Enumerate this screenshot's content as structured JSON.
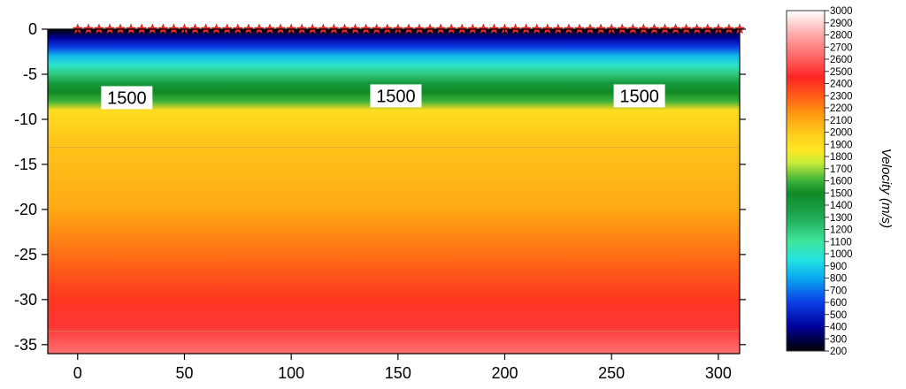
{
  "chart_data": {
    "type": "heatmap",
    "title": "",
    "xlabel": "",
    "ylabel": "",
    "xlim": [
      -14,
      310
    ],
    "ylim": [
      -36,
      0
    ],
    "xticks": [
      0,
      50,
      100,
      150,
      200,
      250,
      300
    ],
    "yticks": [
      0,
      -5,
      -10,
      -15,
      -20,
      -25,
      -30,
      -35
    ],
    "grid": false,
    "model_extent": {
      "x": [
        -14,
        310
      ],
      "depth": [
        0,
        -36
      ]
    },
    "velocity_profile": [
      {
        "depth": 0,
        "velocity": 200
      },
      {
        "depth": -1,
        "velocity": 400
      },
      {
        "depth": -2,
        "velocity": 600
      },
      {
        "depth": -3,
        "velocity": 850
      },
      {
        "depth": -4,
        "velocity": 1000
      },
      {
        "depth": -5,
        "velocity": 1200
      },
      {
        "depth": -6,
        "velocity": 1400
      },
      {
        "depth": -7,
        "velocity": 1500
      },
      {
        "depth": -8,
        "velocity": 1600
      },
      {
        "depth": -9,
        "velocity": 1900
      },
      {
        "depth": -12,
        "velocity": 2000
      },
      {
        "depth": -20,
        "velocity": 2100
      },
      {
        "depth": -25,
        "velocity": 2250
      },
      {
        "depth": -30,
        "velocity": 2400
      },
      {
        "depth": -33,
        "velocity": 2500
      },
      {
        "depth": -36,
        "velocity": 2650
      }
    ],
    "contours": [
      {
        "depth": -13.1
      },
      {
        "depth": -33.5
      }
    ],
    "contour_labels": [
      {
        "text": "1500",
        "x": 11,
        "depth": -7.6
      },
      {
        "text": "1500",
        "x": 137,
        "depth": -7.4
      },
      {
        "text": "1500",
        "x": 251,
        "depth": -7.4
      }
    ],
    "receivers": {
      "x_start": 0,
      "x_end": 310,
      "spacing": 5,
      "depth": 0,
      "color": "#ee2a2a"
    },
    "colorbar": {
      "label": "Velocity (m/s)",
      "min": 200,
      "max": 3000,
      "ticks": [
        200,
        300,
        400,
        500,
        600,
        700,
        800,
        900,
        1000,
        1100,
        1200,
        1300,
        1400,
        1500,
        1600,
        1700,
        1800,
        1900,
        2000,
        2100,
        2200,
        2300,
        2400,
        2500,
        2600,
        2700,
        2800,
        2900,
        3000
      ],
      "stops": [
        {
          "v": 200,
          "color": "#000000"
        },
        {
          "v": 400,
          "color": "#00009a"
        },
        {
          "v": 600,
          "color": "#0a3ee6"
        },
        {
          "v": 800,
          "color": "#0aa8f0"
        },
        {
          "v": 950,
          "color": "#22e4e0"
        },
        {
          "v": 1100,
          "color": "#3fe59c"
        },
        {
          "v": 1300,
          "color": "#1faa55"
        },
        {
          "v": 1500,
          "color": "#0f8a26"
        },
        {
          "v": 1600,
          "color": "#3cb23a"
        },
        {
          "v": 1750,
          "color": "#c8ec3a"
        },
        {
          "v": 1850,
          "color": "#ffe824"
        },
        {
          "v": 2000,
          "color": "#ffc81a"
        },
        {
          "v": 2150,
          "color": "#ff9a10"
        },
        {
          "v": 2300,
          "color": "#ff5a18"
        },
        {
          "v": 2450,
          "color": "#fe2424"
        },
        {
          "v": 2600,
          "color": "#ff5e5e"
        },
        {
          "v": 2800,
          "color": "#ffa8a8"
        },
        {
          "v": 3000,
          "color": "#ffffff"
        }
      ]
    }
  }
}
